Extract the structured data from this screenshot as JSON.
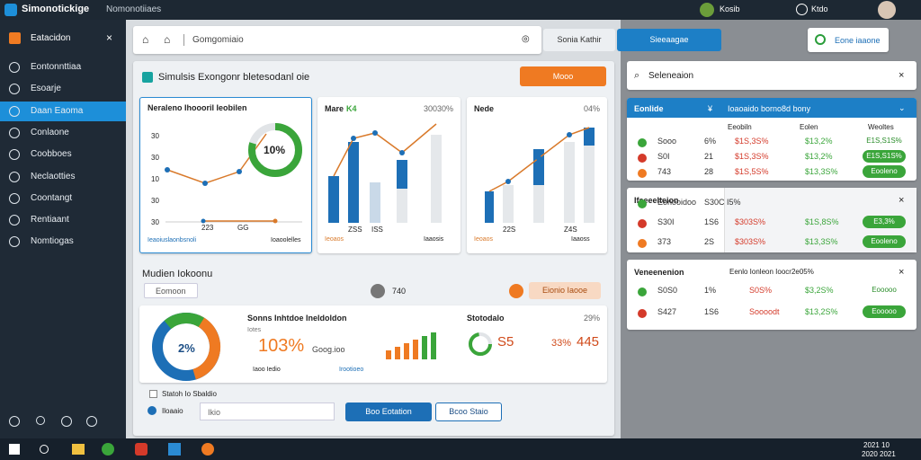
{
  "topbar": {
    "app": "Simonotickige",
    "subtitle": "Nomonotiiaes",
    "user1": "Kosib",
    "user2": "Ktdo"
  },
  "sidebar": {
    "header": "Eatacidon",
    "items": [
      "Eontonnttiaa",
      "Esoarje",
      "Daan Eaoma",
      "Conlaone",
      "Coobboes",
      "Neclaotties",
      "Coontangt",
      "Rentiaant",
      "Nomtiogas"
    ]
  },
  "toolbar": {
    "breadcrumb": "Gomgomiaio",
    "tab1": "Sonia Kathir",
    "tab2": "Sieeaagae",
    "action": "Eone iaaone"
  },
  "main": {
    "title": "Simulsis Exongonr bletesodanl oie",
    "button": "Mooo",
    "cards": [
      {
        "title": "Neraleno Ihoooril Ieobilen",
        "gauge": "10%",
        "yticks": [
          "30",
          "30",
          "10",
          "30",
          "30"
        ],
        "xlabels": [
          "223",
          "GG"
        ],
        "legend": [
          "Ieaoiuslaonbsnoli",
          "Ioaoolelles"
        ]
      },
      {
        "title": "Mare",
        "badge": "K4",
        "corner": "30030%",
        "xlabels": [
          "ZSS",
          "ISS"
        ],
        "legend": [
          "Ieoaos",
          "Iaaosis"
        ]
      },
      {
        "title": "Nede",
        "corner": "04%",
        "xlabels": [
          "22S",
          "Z4S"
        ],
        "legend": [
          "Ieoaos",
          "Iaaoss"
        ]
      }
    ],
    "section": {
      "title": "Mudien Iokoonu",
      "input": "Eomoon",
      "count": "740",
      "pill": "Eionio Iaooe"
    },
    "summary": {
      "donut": "2%",
      "title": "Sonns Inhtdoe Ineldoldon",
      "sub": "Iotes",
      "big": "103%",
      "small": "Goog.ioo",
      "legend": [
        "Iaoo Iedio",
        "Irootioeo"
      ],
      "stat_title": "Stotodalo",
      "stat_corner": "29%",
      "stat_a": "S5",
      "stat_b": "33%",
      "stat_c": "445"
    },
    "footer": {
      "checkbox": "Statoh Io Sbaldio",
      "field_label": "Iloaaio",
      "field_value": "Ikio",
      "primary": "Boo Eotation",
      "secondary": "Bcoo Staio"
    }
  },
  "panel": {
    "title": "Seleneaion",
    "card1": {
      "header_left": "Eonlide",
      "header_right": "Ioaoaido borno8d bony",
      "cols": [
        "Eeobiln",
        "Eolen",
        "Weoltes"
      ],
      "rows": [
        [
          "Sooo",
          "6%",
          "$1S,3S%",
          "$13,2%",
          "E1S,S1S%"
        ],
        [
          "S0I",
          "21",
          "$1S,3S%",
          "$13,2%",
          "E1S,S1S%"
        ],
        [
          "743",
          "28",
          "$1S,5S%",
          "$13,3S%",
          "Eooleno"
        ]
      ]
    },
    "card2": {
      "title": "Ifeeeelteion",
      "rows": [
        [
          "Eonooidoo",
          "S30C I5%"
        ],
        [
          "S30I",
          "1S6",
          "$303S%",
          "$1S,8S%",
          "E3,3%"
        ],
        [
          "373",
          "2S",
          "$303S%",
          "$13,3S%",
          "Eooleno"
        ]
      ]
    },
    "card3": {
      "title": "Veneenenion",
      "header": "Eenlo Ionleon Ioocr2e05%",
      "rows": [
        [
          "S0S0",
          "1%",
          "S0S%",
          "$3,2S%",
          "Eooooo"
        ],
        [
          "S427",
          "1S6",
          "Soooodt",
          "$13,2S%",
          "Eooooo"
        ]
      ]
    }
  },
  "taskbar": {
    "time": "2021 10",
    "date": "2020 2021"
  }
}
